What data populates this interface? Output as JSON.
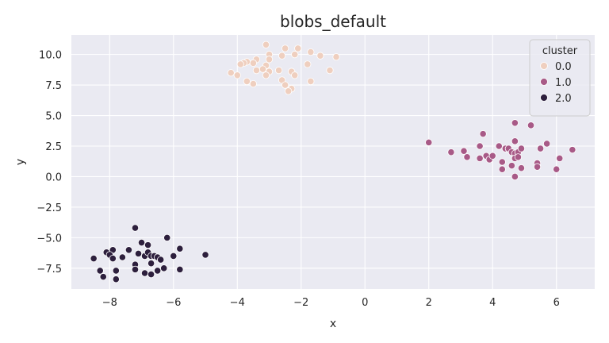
{
  "chart_data": {
    "type": "scatter",
    "title": "blobs_default",
    "xlabel": "x",
    "ylabel": "y",
    "xlim": [
      -9.2,
      7.2
    ],
    "ylim": [
      -9.2,
      11.6
    ],
    "xticks": [
      -8,
      -6,
      -4,
      -2,
      0,
      2,
      4,
      6
    ],
    "xtick_labels": [
      "−8",
      "−6",
      "−4",
      "−2",
      "0",
      "2",
      "4",
      "6"
    ],
    "yticks": [
      -7.5,
      -5.0,
      -2.5,
      0.0,
      2.5,
      5.0,
      7.5,
      10.0
    ],
    "ytick_labels": [
      "−7.5",
      "−5.0",
      "−2.5",
      "0.0",
      "2.5",
      "5.0",
      "7.5",
      "10.0"
    ],
    "grid": true,
    "legend": {
      "title": "cluster",
      "placement": "top-right"
    },
    "series": [
      {
        "name": "0.0",
        "color": "#efcfbf",
        "points": [
          [
            -3.1,
            10.8
          ],
          [
            -2.5,
            10.5
          ],
          [
            -2.1,
            10.5
          ],
          [
            -1.7,
            10.2
          ],
          [
            -2.2,
            10.0
          ],
          [
            -2.6,
            9.9
          ],
          [
            -3.0,
            10.0
          ],
          [
            -3.4,
            9.6
          ],
          [
            -3.0,
            9.6
          ],
          [
            -1.4,
            9.9
          ],
          [
            -0.9,
            9.8
          ],
          [
            -3.7,
            9.4
          ],
          [
            -3.8,
            9.3
          ],
          [
            -3.5,
            9.3
          ],
          [
            -3.9,
            9.2
          ],
          [
            -1.8,
            9.2
          ],
          [
            -3.1,
            9.1
          ],
          [
            -3.2,
            8.8
          ],
          [
            -3.4,
            8.7
          ],
          [
            -3.0,
            8.6
          ],
          [
            -2.7,
            8.7
          ],
          [
            -2.3,
            8.6
          ],
          [
            -2.2,
            8.3
          ],
          [
            -4.2,
            8.5
          ],
          [
            -4.0,
            8.3
          ],
          [
            -3.1,
            8.3
          ],
          [
            -1.1,
            8.7
          ],
          [
            -2.6,
            7.9
          ],
          [
            -3.7,
            7.8
          ],
          [
            -3.5,
            7.6
          ],
          [
            -2.5,
            7.5
          ],
          [
            -1.7,
            7.8
          ],
          [
            -2.3,
            7.2
          ],
          [
            -2.4,
            7.0
          ]
        ]
      },
      {
        "name": "1.0",
        "color": "#a85a87",
        "points": [
          [
            2.0,
            2.8
          ],
          [
            2.7,
            2.0
          ],
          [
            3.1,
            2.1
          ],
          [
            3.2,
            1.6
          ],
          [
            3.6,
            2.5
          ],
          [
            3.7,
            3.5
          ],
          [
            3.6,
            1.5
          ],
          [
            3.8,
            1.7
          ],
          [
            3.9,
            1.4
          ],
          [
            4.0,
            1.7
          ],
          [
            4.2,
            2.5
          ],
          [
            4.3,
            1.2
          ],
          [
            4.3,
            0.6
          ],
          [
            4.4,
            2.3
          ],
          [
            4.5,
            2.3
          ],
          [
            4.6,
            2.0
          ],
          [
            4.6,
            0.9
          ],
          [
            4.7,
            1.9
          ],
          [
            4.7,
            1.5
          ],
          [
            4.7,
            2.9
          ],
          [
            4.7,
            4.4
          ],
          [
            4.7,
            0.0
          ],
          [
            4.8,
            2.0
          ],
          [
            4.8,
            1.6
          ],
          [
            4.9,
            0.7
          ],
          [
            4.9,
            2.3
          ],
          [
            5.2,
            4.2
          ],
          [
            5.4,
            1.1
          ],
          [
            5.4,
            0.8
          ],
          [
            5.5,
            2.3
          ],
          [
            5.7,
            2.7
          ],
          [
            6.0,
            0.6
          ],
          [
            6.1,
            1.5
          ],
          [
            6.5,
            2.2
          ]
        ]
      },
      {
        "name": "2.0",
        "color": "#2d1f3d",
        "points": [
          [
            -7.2,
            -4.2
          ],
          [
            -6.2,
            -5.0
          ],
          [
            -7.0,
            -5.4
          ],
          [
            -6.8,
            -5.6
          ],
          [
            -5.8,
            -5.9
          ],
          [
            -5.0,
            -6.4
          ],
          [
            -7.9,
            -6.0
          ],
          [
            -7.4,
            -6.0
          ],
          [
            -7.1,
            -6.3
          ],
          [
            -8.1,
            -6.2
          ],
          [
            -8.0,
            -6.4
          ],
          [
            -7.6,
            -6.6
          ],
          [
            -7.9,
            -6.7
          ],
          [
            -6.9,
            -6.5
          ],
          [
            -6.8,
            -6.2
          ],
          [
            -6.7,
            -6.5
          ],
          [
            -6.6,
            -6.5
          ],
          [
            -6.5,
            -6.6
          ],
          [
            -6.4,
            -6.8
          ],
          [
            -6.0,
            -6.5
          ],
          [
            -8.5,
            -6.7
          ],
          [
            -7.2,
            -7.2
          ],
          [
            -6.7,
            -7.1
          ],
          [
            -6.3,
            -7.5
          ],
          [
            -5.8,
            -7.6
          ],
          [
            -7.2,
            -7.6
          ],
          [
            -8.3,
            -7.7
          ],
          [
            -7.8,
            -7.7
          ],
          [
            -6.9,
            -7.9
          ],
          [
            -6.7,
            -8.0
          ],
          [
            -8.2,
            -8.2
          ],
          [
            -7.8,
            -8.4
          ],
          [
            -6.5,
            -7.7
          ]
        ]
      }
    ]
  }
}
